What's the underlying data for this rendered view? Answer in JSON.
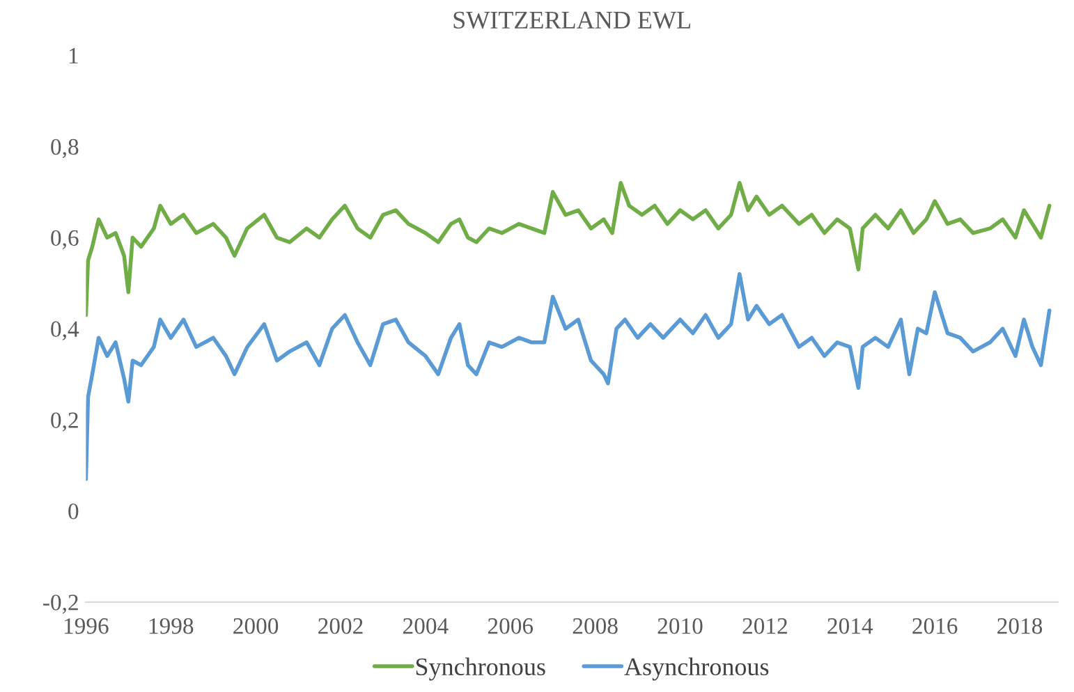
{
  "chart_data": {
    "type": "line",
    "title": "SWITZERLAND EWL",
    "legend": "bottom",
    "xlim": [
      1996,
      2018.9
    ],
    "xticks": [
      1996,
      1998,
      2000,
      2002,
      2004,
      2006,
      2008,
      2010,
      2012,
      2014,
      2016,
      2018
    ],
    "ylim": [
      -0.2,
      1
    ],
    "yticks": [
      {
        "value": -0.2,
        "label": "-0,2"
      },
      {
        "value": 0,
        "label": "0"
      },
      {
        "value": 0.2,
        "label": "0,2"
      },
      {
        "value": 0.4,
        "label": "0,4"
      },
      {
        "value": 0.6,
        "label": "0,6"
      },
      {
        "value": 0.8,
        "label": "0,8"
      },
      {
        "value": 1,
        "label": "1"
      }
    ],
    "series": [
      {
        "name": "Synchronous",
        "color": "#70ad47",
        "x": [
          1996.0,
          1996.05,
          1996.15,
          1996.3,
          1996.5,
          1996.7,
          1996.9,
          1997.0,
          1997.1,
          1997.3,
          1997.6,
          1997.75,
          1998.0,
          1998.3,
          1998.6,
          1999.0,
          1999.3,
          1999.5,
          1999.8,
          2000.2,
          2000.5,
          2000.8,
          2001.2,
          2001.5,
          2001.8,
          2002.1,
          2002.4,
          2002.7,
          2003.0,
          2003.3,
          2003.6,
          2004.0,
          2004.3,
          2004.6,
          2004.8,
          2005.0,
          2005.2,
          2005.5,
          2005.8,
          2006.2,
          2006.5,
          2006.8,
          2007.0,
          2007.3,
          2007.6,
          2007.9,
          2008.2,
          2008.4,
          2008.6,
          2008.8,
          2009.1,
          2009.4,
          2009.7,
          2010.0,
          2010.3,
          2010.6,
          2010.9,
          2011.2,
          2011.4,
          2011.6,
          2011.8,
          2012.1,
          2012.4,
          2012.8,
          2013.1,
          2013.4,
          2013.7,
          2014.0,
          2014.2,
          2014.3,
          2014.6,
          2014.9,
          2015.2,
          2015.5,
          2015.8,
          2016.0,
          2016.3,
          2016.6,
          2016.9,
          2017.3,
          2017.6,
          2017.9,
          2018.1,
          2018.3,
          2018.5,
          2018.7
        ],
        "values": [
          0.43,
          0.55,
          0.58,
          0.64,
          0.6,
          0.61,
          0.56,
          0.48,
          0.6,
          0.58,
          0.62,
          0.67,
          0.63,
          0.65,
          0.61,
          0.63,
          0.6,
          0.56,
          0.62,
          0.65,
          0.6,
          0.59,
          0.62,
          0.6,
          0.64,
          0.67,
          0.62,
          0.6,
          0.65,
          0.66,
          0.63,
          0.61,
          0.59,
          0.63,
          0.64,
          0.6,
          0.59,
          0.62,
          0.61,
          0.63,
          0.62,
          0.61,
          0.7,
          0.65,
          0.66,
          0.62,
          0.64,
          0.61,
          0.72,
          0.67,
          0.65,
          0.67,
          0.63,
          0.66,
          0.64,
          0.66,
          0.62,
          0.65,
          0.72,
          0.66,
          0.69,
          0.65,
          0.67,
          0.63,
          0.65,
          0.61,
          0.64,
          0.62,
          0.53,
          0.62,
          0.65,
          0.62,
          0.66,
          0.61,
          0.64,
          0.68,
          0.63,
          0.64,
          0.61,
          0.62,
          0.64,
          0.6,
          0.66,
          0.63,
          0.6,
          0.67
        ]
      },
      {
        "name": "Asynchronous",
        "color": "#5b9bd5",
        "x": [
          1996.0,
          1996.05,
          1996.15,
          1996.3,
          1996.5,
          1996.7,
          1996.9,
          1997.0,
          1997.1,
          1997.3,
          1997.6,
          1997.75,
          1998.0,
          1998.3,
          1998.6,
          1999.0,
          1999.3,
          1999.5,
          1999.8,
          2000.2,
          2000.5,
          2000.8,
          2001.2,
          2001.5,
          2001.8,
          2002.1,
          2002.4,
          2002.7,
          2003.0,
          2003.3,
          2003.6,
          2004.0,
          2004.3,
          2004.6,
          2004.8,
          2005.0,
          2005.2,
          2005.5,
          2005.8,
          2006.2,
          2006.5,
          2006.8,
          2007.0,
          2007.3,
          2007.6,
          2007.9,
          2008.2,
          2008.3,
          2008.5,
          2008.7,
          2009.0,
          2009.3,
          2009.6,
          2010.0,
          2010.3,
          2010.6,
          2010.9,
          2011.2,
          2011.4,
          2011.6,
          2011.8,
          2012.1,
          2012.4,
          2012.8,
          2013.1,
          2013.4,
          2013.7,
          2014.0,
          2014.2,
          2014.3,
          2014.6,
          2014.9,
          2015.2,
          2015.4,
          2015.6,
          2015.8,
          2016.0,
          2016.3,
          2016.6,
          2016.9,
          2017.3,
          2017.6,
          2017.9,
          2018.1,
          2018.3,
          2018.5,
          2018.7
        ],
        "values": [
          0.07,
          0.25,
          0.3,
          0.38,
          0.34,
          0.37,
          0.29,
          0.24,
          0.33,
          0.32,
          0.36,
          0.42,
          0.38,
          0.42,
          0.36,
          0.38,
          0.34,
          0.3,
          0.36,
          0.41,
          0.33,
          0.35,
          0.37,
          0.32,
          0.4,
          0.43,
          0.37,
          0.32,
          0.41,
          0.42,
          0.37,
          0.34,
          0.3,
          0.38,
          0.41,
          0.32,
          0.3,
          0.37,
          0.36,
          0.38,
          0.37,
          0.37,
          0.47,
          0.4,
          0.42,
          0.33,
          0.3,
          0.28,
          0.4,
          0.42,
          0.38,
          0.41,
          0.38,
          0.42,
          0.39,
          0.43,
          0.38,
          0.41,
          0.52,
          0.42,
          0.45,
          0.41,
          0.43,
          0.36,
          0.38,
          0.34,
          0.37,
          0.36,
          0.27,
          0.36,
          0.38,
          0.36,
          0.42,
          0.3,
          0.4,
          0.39,
          0.48,
          0.39,
          0.38,
          0.35,
          0.37,
          0.4,
          0.34,
          0.42,
          0.36,
          0.32,
          0.44
        ]
      }
    ]
  }
}
